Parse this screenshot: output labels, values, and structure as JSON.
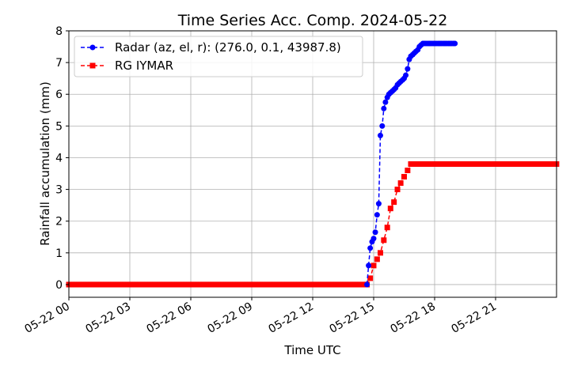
{
  "chart_data": {
    "type": "line",
    "title": "Time Series Acc. Comp. 2024-05-22",
    "xlabel": "Time UTC",
    "ylabel": "Rainfall accumulation (mm)",
    "x_unit": "hours UTC on 2024-05-22",
    "xlim": [
      0,
      24
    ],
    "ylim": [
      -0.4,
      8
    ],
    "xticks": [
      0,
      3,
      6,
      9,
      12,
      15,
      18,
      21
    ],
    "xtick_labels": [
      "05-22 00",
      "05-22 03",
      "05-22 06",
      "05-22 09",
      "05-22 12",
      "05-22 15",
      "05-22 18",
      "05-22 21"
    ],
    "yticks": [
      0,
      1,
      2,
      3,
      4,
      5,
      6,
      7,
      8
    ],
    "ytick_labels": [
      "0",
      "1",
      "2",
      "3",
      "4",
      "5",
      "6",
      "7",
      "8"
    ],
    "grid": true,
    "legend_position": "top-left",
    "series": [
      {
        "name": "Radar (az, el, r): (276.0, 0.1, 43987.8)",
        "color": "#0000ff",
        "marker": "circle",
        "linestyle": "dashed",
        "x": [
          14.67,
          14.75,
          14.83,
          14.92,
          15.0,
          15.08,
          15.17,
          15.25,
          15.33,
          15.42,
          15.5,
          15.58,
          15.67,
          15.75,
          15.83,
          15.92,
          16.0,
          16.08,
          16.17,
          16.25,
          16.33,
          16.42,
          16.5,
          16.58,
          16.67,
          16.75,
          16.83,
          16.92,
          17.0,
          17.08,
          17.17,
          17.25,
          17.33,
          17.42,
          17.5,
          17.58,
          17.67,
          17.75,
          17.83,
          17.92,
          18.0,
          18.08,
          18.17,
          18.25,
          18.33,
          18.42,
          18.5,
          18.58,
          18.67,
          18.75,
          18.83,
          18.92,
          19.0
        ],
        "y": [
          0.0,
          0.6,
          1.15,
          1.35,
          1.45,
          1.65,
          2.2,
          2.55,
          4.7,
          5.0,
          5.55,
          5.75,
          5.9,
          6.0,
          6.05,
          6.1,
          6.15,
          6.2,
          6.3,
          6.35,
          6.4,
          6.45,
          6.5,
          6.6,
          6.8,
          7.1,
          7.2,
          7.25,
          7.3,
          7.35,
          7.4,
          7.5,
          7.55,
          7.6,
          7.6,
          7.6,
          7.6,
          7.6,
          7.6,
          7.6,
          7.6,
          7.6,
          7.6,
          7.6,
          7.6,
          7.6,
          7.6,
          7.6,
          7.6,
          7.6,
          7.6,
          7.6,
          7.6
        ]
      },
      {
        "name": "RG IYMAR",
        "color": "#ff0000",
        "marker": "square",
        "linestyle": "dashed",
        "step_x": [
          0,
          0.0833,
          24
        ],
        "y_before_rise": 0,
        "rise_x": [
          14.67,
          14.83,
          15.0,
          15.17,
          15.33,
          15.5,
          15.67,
          15.83,
          16.0,
          16.17,
          16.33,
          16.5,
          16.67,
          16.83,
          17.0
        ],
        "rise_y": [
          0.0,
          0.2,
          0.6,
          0.8,
          1.0,
          1.4,
          1.8,
          2.4,
          2.6,
          3.0,
          3.2,
          3.4,
          3.6,
          3.8,
          3.8
        ],
        "y_after_rise": 3.8
      }
    ]
  }
}
